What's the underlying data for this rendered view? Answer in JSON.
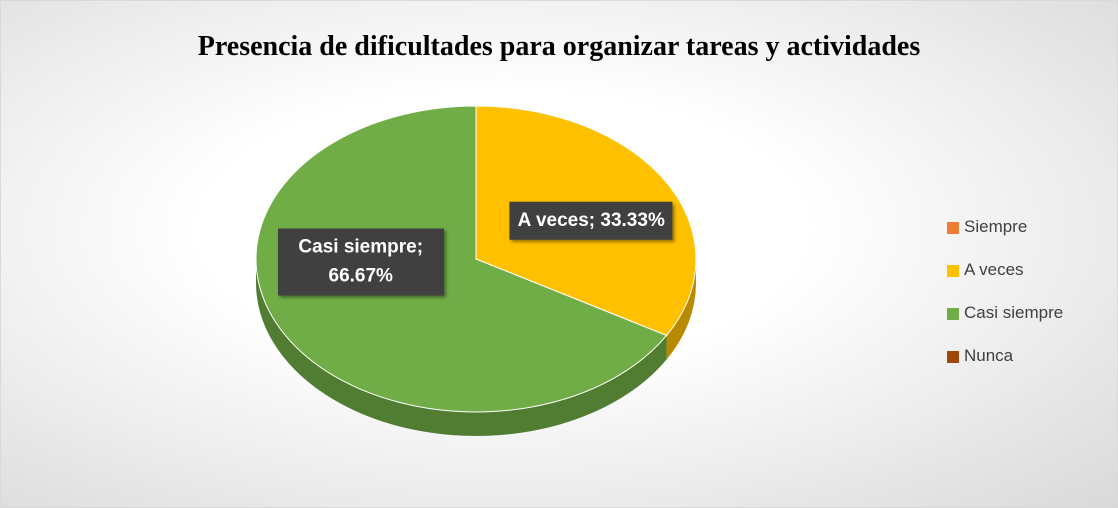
{
  "chart_data": {
    "type": "pie3d",
    "title": "Presencia de dificultades para organizar tareas y actividades",
    "categories": [
      "Siempre",
      "A veces",
      "Casi siempre",
      "Nunca"
    ],
    "values": [
      0,
      33.33,
      66.67,
      0
    ],
    "value_labels": [
      null,
      "A veces; 33.33%",
      "Casi siempre; 66.67%",
      null
    ],
    "colors": [
      "#ed7d31",
      "#ffc000",
      "#70ad47",
      "#9e480e"
    ],
    "legend": "right"
  }
}
